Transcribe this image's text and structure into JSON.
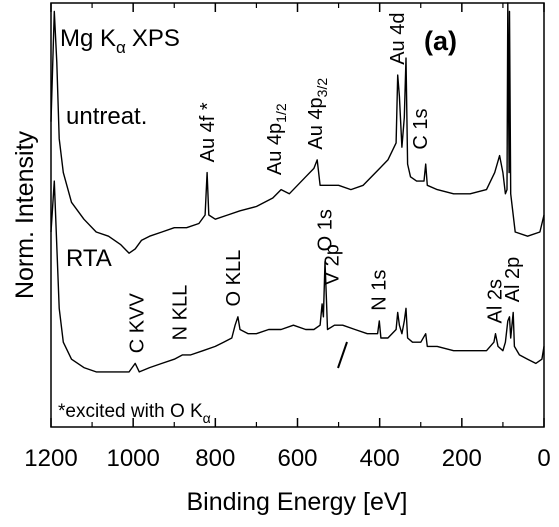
{
  "chart_data": {
    "type": "line",
    "title": "",
    "panel_label": "(a)",
    "xlabel": "Binding Energy [eV]",
    "ylabel": "Norm. Intensity",
    "xlim": [
      1200,
      0
    ],
    "x_reversed": true,
    "xticks": [
      1200,
      1000,
      800,
      600,
      400,
      200,
      0
    ],
    "xtick_labels": [
      "1200",
      "1000",
      "800",
      "600",
      "400",
      "200",
      "0"
    ],
    "grid": false,
    "legend": "none",
    "annotation_texts": {
      "method": "Mg K",
      "method_sub": "α",
      "method_suffix": "XPS",
      "untreated_label": "untreat.",
      "rta_label": "RTA",
      "footnote": "*excited with O K",
      "footnote_sub": "α"
    },
    "series": [
      {
        "name": "untreat.",
        "points": [
          [
            1200,
            0.72
          ],
          [
            1192,
            0.98
          ],
          [
            1186,
            0.86
          ],
          [
            1180,
            0.68
          ],
          [
            1170,
            0.6
          ],
          [
            1150,
            0.53
          ],
          [
            1120,
            0.49
          ],
          [
            1090,
            0.46
          ],
          [
            1060,
            0.45
          ],
          [
            1030,
            0.43
          ],
          [
            1010,
            0.41
          ],
          [
            995,
            0.42
          ],
          [
            980,
            0.44
          ],
          [
            960,
            0.45
          ],
          [
            930,
            0.46
          ],
          [
            900,
            0.47
          ],
          [
            870,
            0.47
          ],
          [
            840,
            0.48
          ],
          [
            825,
            0.5
          ],
          [
            820,
            0.6
          ],
          [
            816,
            0.5
          ],
          [
            800,
            0.49
          ],
          [
            770,
            0.5
          ],
          [
            740,
            0.51
          ],
          [
            700,
            0.52
          ],
          [
            660,
            0.54
          ],
          [
            640,
            0.56
          ],
          [
            620,
            0.55
          ],
          [
            600,
            0.57
          ],
          [
            580,
            0.59
          ],
          [
            560,
            0.61
          ],
          [
            552,
            0.63
          ],
          [
            545,
            0.57
          ],
          [
            530,
            0.57
          ],
          [
            500,
            0.57
          ],
          [
            470,
            0.56
          ],
          [
            440,
            0.57
          ],
          [
            420,
            0.59
          ],
          [
            400,
            0.61
          ],
          [
            380,
            0.63
          ],
          [
            360,
            0.67
          ],
          [
            356,
            0.83
          ],
          [
            352,
            0.78
          ],
          [
            346,
            0.66
          ],
          [
            340,
            0.73
          ],
          [
            336,
            0.87
          ],
          [
            332,
            0.62
          ],
          [
            325,
            0.59
          ],
          [
            310,
            0.58
          ],
          [
            292,
            0.58
          ],
          [
            288,
            0.62
          ],
          [
            284,
            0.57
          ],
          [
            260,
            0.56
          ],
          [
            220,
            0.55
          ],
          [
            180,
            0.55
          ],
          [
            140,
            0.56
          ],
          [
            120,
            0.6
          ],
          [
            108,
            0.64
          ],
          [
            100,
            0.6
          ],
          [
            94,
            0.55
          ],
          [
            90,
            0.56
          ],
          [
            88,
            1.0
          ],
          [
            85,
            0.6
          ],
          [
            84,
            0.98
          ],
          [
            81,
            0.55
          ],
          [
            70,
            0.46
          ],
          [
            40,
            0.45
          ],
          [
            10,
            0.46
          ],
          [
            0,
            0.5
          ]
        ]
      },
      {
        "name": "RTA",
        "points": [
          [
            1200,
            0.46
          ],
          [
            1192,
            0.58
          ],
          [
            1180,
            0.28
          ],
          [
            1170,
            0.2
          ],
          [
            1150,
            0.16
          ],
          [
            1120,
            0.14
          ],
          [
            1090,
            0.13
          ],
          [
            1060,
            0.13
          ],
          [
            1030,
            0.13
          ],
          [
            1010,
            0.13
          ],
          [
            995,
            0.15
          ],
          [
            985,
            0.13
          ],
          [
            960,
            0.14
          ],
          [
            930,
            0.15
          ],
          [
            900,
            0.16
          ],
          [
            880,
            0.17
          ],
          [
            860,
            0.17
          ],
          [
            830,
            0.18
          ],
          [
            800,
            0.19
          ],
          [
            780,
            0.2
          ],
          [
            760,
            0.21
          ],
          [
            752,
            0.24
          ],
          [
            745,
            0.26
          ],
          [
            740,
            0.23
          ],
          [
            720,
            0.22
          ],
          [
            700,
            0.22
          ],
          [
            670,
            0.23
          ],
          [
            640,
            0.23
          ],
          [
            610,
            0.24
          ],
          [
            580,
            0.23
          ],
          [
            560,
            0.23
          ],
          [
            545,
            0.24
          ],
          [
            540,
            0.29
          ],
          [
            537,
            0.26
          ],
          [
            533,
            0.39
          ],
          [
            530,
            0.31
          ],
          [
            527,
            0.23
          ],
          [
            510,
            0.24
          ],
          [
            490,
            0.24
          ],
          [
            460,
            0.23
          ],
          [
            430,
            0.22
          ],
          [
            405,
            0.22
          ],
          [
            401,
            0.25
          ],
          [
            397,
            0.21
          ],
          [
            380,
            0.21
          ],
          [
            360,
            0.23
          ],
          [
            356,
            0.27
          ],
          [
            352,
            0.24
          ],
          [
            346,
            0.22
          ],
          [
            340,
            0.25
          ],
          [
            336,
            0.28
          ],
          [
            332,
            0.21
          ],
          [
            320,
            0.2
          ],
          [
            300,
            0.2
          ],
          [
            288,
            0.22
          ],
          [
            284,
            0.19
          ],
          [
            260,
            0.19
          ],
          [
            220,
            0.18
          ],
          [
            180,
            0.18
          ],
          [
            140,
            0.18
          ],
          [
            122,
            0.2
          ],
          [
            118,
            0.22
          ],
          [
            112,
            0.19
          ],
          [
            100,
            0.18
          ],
          [
            94,
            0.2
          ],
          [
            88,
            0.25
          ],
          [
            84,
            0.26
          ],
          [
            81,
            0.21
          ],
          [
            75,
            0.27
          ],
          [
            72,
            0.19
          ],
          [
            60,
            0.17
          ],
          [
            40,
            0.16
          ],
          [
            20,
            0.15
          ],
          [
            5,
            0.16
          ],
          [
            0,
            0.19
          ]
        ]
      }
    ],
    "peak_labels": [
      {
        "text": "Au 4f",
        "sub": "",
        "suffix": "",
        "x": 88,
        "series": "untreat.",
        "y": 1.0
      },
      {
        "text": "Au 4d",
        "sub": "",
        "suffix": "",
        "x": 355,
        "series": "untreat.",
        "y": 0.84
      },
      {
        "text": "C 1s",
        "sub": "",
        "suffix": "",
        "x": 300,
        "series": "untreat.",
        "y": 0.64
      },
      {
        "text": "Au 4p",
        "sub": "3/2",
        "suffix": "",
        "x": 555,
        "series": "untreat.",
        "y": 0.64
      },
      {
        "text": "Au 4p",
        "sub": "1/2",
        "suffix": "",
        "x": 655,
        "series": "untreat.",
        "y": 0.58
      },
      {
        "text": "Au 4f *",
        "sub": "",
        "suffix": "",
        "x": 818,
        "series": "untreat.",
        "y": 0.61
      },
      {
        "text": "O 1s",
        "sub": "",
        "suffix": "",
        "x": 532,
        "series": "RTA",
        "y": 0.4
      },
      {
        "text": "V 2p",
        "sub": "",
        "suffix": "",
        "x": 515,
        "series": "RTA",
        "y": 0.32
      },
      {
        "text": "N 1s",
        "sub": "",
        "suffix": "",
        "x": 400,
        "series": "RTA",
        "y": 0.26
      },
      {
        "text": "O KLL",
        "sub": "",
        "suffix": "",
        "x": 755,
        "series": "RTA",
        "y": 0.27
      },
      {
        "text": "N KLL",
        "sub": "",
        "suffix": "",
        "x": 885,
        "series": "RTA",
        "y": 0.19
      },
      {
        "text": "C KVV",
        "sub": "",
        "suffix": "",
        "x": 990,
        "series": "RTA",
        "y": 0.16
      },
      {
        "text": "Al 2s",
        "sub": "",
        "suffix": "",
        "x": 118,
        "series": "RTA",
        "y": 0.23
      },
      {
        "text": "Al 2p",
        "sub": "",
        "suffix": "",
        "x": 75,
        "series": "RTA",
        "y": 0.28
      }
    ]
  }
}
